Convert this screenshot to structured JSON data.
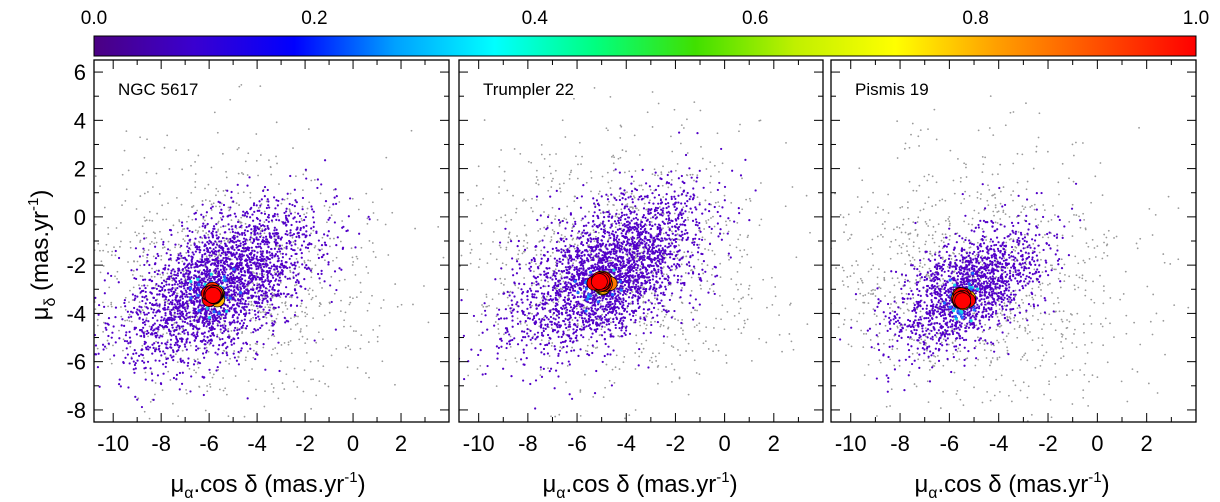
{
  "chart_data": [
    {
      "type": "scatter",
      "panel_label": "NGC 5617",
      "x": [
        -10.5,
        -8.0,
        -7.0,
        -6.3,
        -6.0,
        -5.8,
        -5.7,
        -5.6,
        -5.4,
        -5.0,
        -4.5,
        -3.5,
        -2.0,
        0.0,
        3.5
      ],
      "y": [
        -6.0,
        -5.0,
        -4.2,
        -3.6,
        -3.4,
        -3.3,
        -3.2,
        -3.2,
        -3.1,
        -3.0,
        -2.6,
        -2.0,
        -1.5,
        -1.0,
        2.0
      ],
      "cluster_center": [
        -5.8,
        -3.2
      ],
      "xlim": [
        -10.8,
        4.0
      ],
      "ylim": [
        -8.5,
        6.5
      ],
      "xlabel": "μα.cos δ (mas.yr-1)",
      "ylabel": "μδ (mas.yr-1)",
      "xticks": [
        "-10",
        "-8",
        "-6",
        "-4",
        "-2",
        "0",
        "2"
      ],
      "yticks": [
        "-8",
        "-6",
        "-4",
        "-2",
        "0",
        "2",
        "4",
        "6"
      ]
    },
    {
      "type": "scatter",
      "panel_label": "Trumpler 22",
      "x": [
        -10.0,
        -8.5,
        -7.0,
        -6.0,
        -5.5,
        -5.2,
        -5.1,
        -5.0,
        -4.9,
        -4.5,
        -4.0,
        -3.0,
        -1.5,
        0.5,
        3.0
      ],
      "y": [
        -5.5,
        -4.8,
        -4.0,
        -3.3,
        -3.0,
        -2.8,
        -2.7,
        -2.7,
        -2.6,
        -2.4,
        -2.2,
        -1.8,
        -1.2,
        -0.5,
        1.5
      ],
      "cluster_center": [
        -5.0,
        -2.7
      ],
      "xlim": [
        -10.8,
        4.0
      ],
      "ylim": [
        -8.5,
        6.5
      ],
      "xlabel": "μα.cos δ (mas.yr-1)",
      "xticks": [
        "-10",
        "-8",
        "-6",
        "-4",
        "-2",
        "0",
        "2"
      ]
    },
    {
      "type": "scatter",
      "panel_label": "Pismis 19",
      "x": [
        -9.5,
        -8.0,
        -7.0,
        -6.2,
        -5.8,
        -5.6,
        -5.5,
        -5.4,
        -5.2,
        -4.8,
        -4.0,
        -3.0,
        -1.5,
        0.5,
        2.5
      ],
      "y": [
        -5.0,
        -4.5,
        -4.0,
        -3.7,
        -3.5,
        -3.4,
        -3.4,
        -3.3,
        -3.2,
        -3.0,
        -2.7,
        -2.3,
        -1.8,
        -1.0,
        0.5
      ],
      "cluster_center": [
        -5.5,
        -3.4
      ],
      "xlim": [
        -10.8,
        4.0
      ],
      "ylim": [
        -8.5,
        6.5
      ],
      "xlabel": "μα.cos δ (mas.yr-1)",
      "xticks": [
        "-10",
        "-8",
        "-6",
        "-4",
        "-2",
        "0",
        "2"
      ]
    }
  ],
  "colorbar": {
    "ticks": [
      "0.0",
      "0.2",
      "0.4",
      "0.6",
      "0.8",
      "1.0"
    ],
    "range": [
      0.0,
      1.0
    ],
    "colors": [
      "#4b0082",
      "#3a00d0",
      "#0000ff",
      "#00a0ff",
      "#00ffff",
      "#00ff80",
      "#40e000",
      "#c0f000",
      "#ffff00",
      "#ffa000",
      "#ff5000",
      "#ff0000"
    ]
  },
  "labels": {
    "xlabel_mu": "μ",
    "xlabel_sub": "α",
    "xlabel_rest": ".cos δ (mas.yr",
    "unit_sup": "-1",
    "close_paren": ")",
    "ylabel_mu": "μ",
    "ylabel_sub": "δ",
    "ylabel_rest": " (mas.yr"
  }
}
